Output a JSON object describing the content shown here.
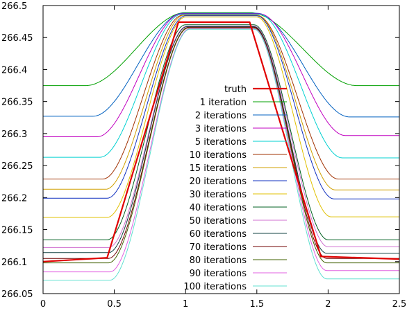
{
  "chart_data": {
    "type": "line",
    "title": "",
    "xlabel": "",
    "ylabel": "",
    "xlim": [
      0,
      2.5
    ],
    "ylim": [
      266.05,
      266.5
    ],
    "x_ticks": [
      "0",
      "0.5",
      "1",
      "1.5",
      "2",
      "2.5"
    ],
    "y_ticks": [
      "266.05",
      "266.1",
      "266.15",
      "266.2",
      "266.25",
      "266.3",
      "266.35",
      "266.4",
      "266.45",
      "266.5"
    ],
    "grid": false,
    "legend_position": "center-right",
    "series": [
      {
        "name": "truth",
        "color": "#e00000",
        "emphasis": true,
        "points": [
          [
            0,
            266.1
          ],
          [
            0.45,
            266.106
          ],
          [
            0.95,
            266.474
          ],
          [
            1.45,
            266.474
          ],
          [
            1.95,
            266.108
          ],
          [
            2.5,
            266.104
          ]
        ]
      },
      {
        "name": "1 iteration",
        "color": "#00a000",
        "base_left": 266.375,
        "base_right": 266.375,
        "rise": [
          0.3,
          1.0
        ],
        "fall": [
          1.45,
          2.2
        ],
        "top": 266.489
      },
      {
        "name": "2 iterations",
        "color": "#0060c0",
        "base_left": 266.327,
        "base_right": 266.326,
        "rise": [
          0.35,
          0.98
        ],
        "fall": [
          1.5,
          2.15
        ],
        "top": 266.488
      },
      {
        "name": "3 iterations",
        "color": "#c000c0",
        "base_left": 266.295,
        "base_right": 266.297,
        "rise": [
          0.38,
          0.97
        ],
        "fall": [
          1.52,
          2.12
        ],
        "top": 266.487
      },
      {
        "name": "5 iterations",
        "color": "#00d0d0",
        "base_left": 266.263,
        "base_right": 266.262,
        "rise": [
          0.4,
          0.97
        ],
        "fall": [
          1.52,
          2.1
        ],
        "top": 266.486
      },
      {
        "name": "10 iterations",
        "color": "#a03000",
        "base_left": 266.229,
        "base_right": 266.229,
        "rise": [
          0.42,
          0.98
        ],
        "fall": [
          1.5,
          2.07
        ],
        "top": 266.485
      },
      {
        "name": "15 iterations",
        "color": "#d0a000",
        "base_left": 266.213,
        "base_right": 266.212,
        "rise": [
          0.44,
          0.99
        ],
        "fall": [
          1.5,
          2.05
        ],
        "top": 266.485
      },
      {
        "name": "20 iterations",
        "color": "#1030c0",
        "base_left": 266.199,
        "base_right": 266.198,
        "rise": [
          0.45,
          1.0
        ],
        "fall": [
          1.5,
          2.04
        ],
        "top": 266.484
      },
      {
        "name": "30 iterations",
        "color": "#e0c000",
        "base_left": 266.169,
        "base_right": 266.17,
        "rise": [
          0.45,
          1.0
        ],
        "fall": [
          1.5,
          2.02
        ],
        "top": 266.482
      },
      {
        "name": "40 iterations",
        "color": "#006020",
        "base_left": 266.134,
        "base_right": 266.134,
        "rise": [
          0.45,
          1.0
        ],
        "fall": [
          1.48,
          2.0
        ],
        "top": 266.47
      },
      {
        "name": "50 iterations",
        "color": "#d070d0",
        "base_left": 266.122,
        "base_right": 266.123,
        "rise": [
          0.46,
          1.01
        ],
        "fall": [
          1.48,
          2.0
        ],
        "top": 266.468
      },
      {
        "name": "60 iterations",
        "color": "#104040",
        "base_left": 266.114,
        "base_right": 266.113,
        "rise": [
          0.46,
          1.01
        ],
        "fall": [
          1.48,
          1.99
        ],
        "top": 266.467
      },
      {
        "name": "70 iterations",
        "color": "#700000",
        "base_left": 266.105,
        "base_right": 266.105,
        "rise": [
          0.46,
          1.02
        ],
        "fall": [
          1.48,
          1.99
        ],
        "top": 266.466
      },
      {
        "name": "80 iterations",
        "color": "#406000",
        "base_left": 266.098,
        "base_right": 266.098,
        "rise": [
          0.46,
          1.02
        ],
        "fall": [
          1.48,
          1.99
        ],
        "top": 266.465
      },
      {
        "name": "90 iterations",
        "color": "#e060e0",
        "base_left": 266.084,
        "base_right": 266.086,
        "rise": [
          0.47,
          1.03
        ],
        "fall": [
          1.48,
          1.99
        ],
        "top": 266.464
      },
      {
        "name": "100 iterations",
        "color": "#60e0d0",
        "base_left": 266.071,
        "base_right": 266.073,
        "rise": [
          0.47,
          1.03
        ],
        "fall": [
          1.48,
          1.99
        ],
        "top": 266.463
      }
    ]
  }
}
